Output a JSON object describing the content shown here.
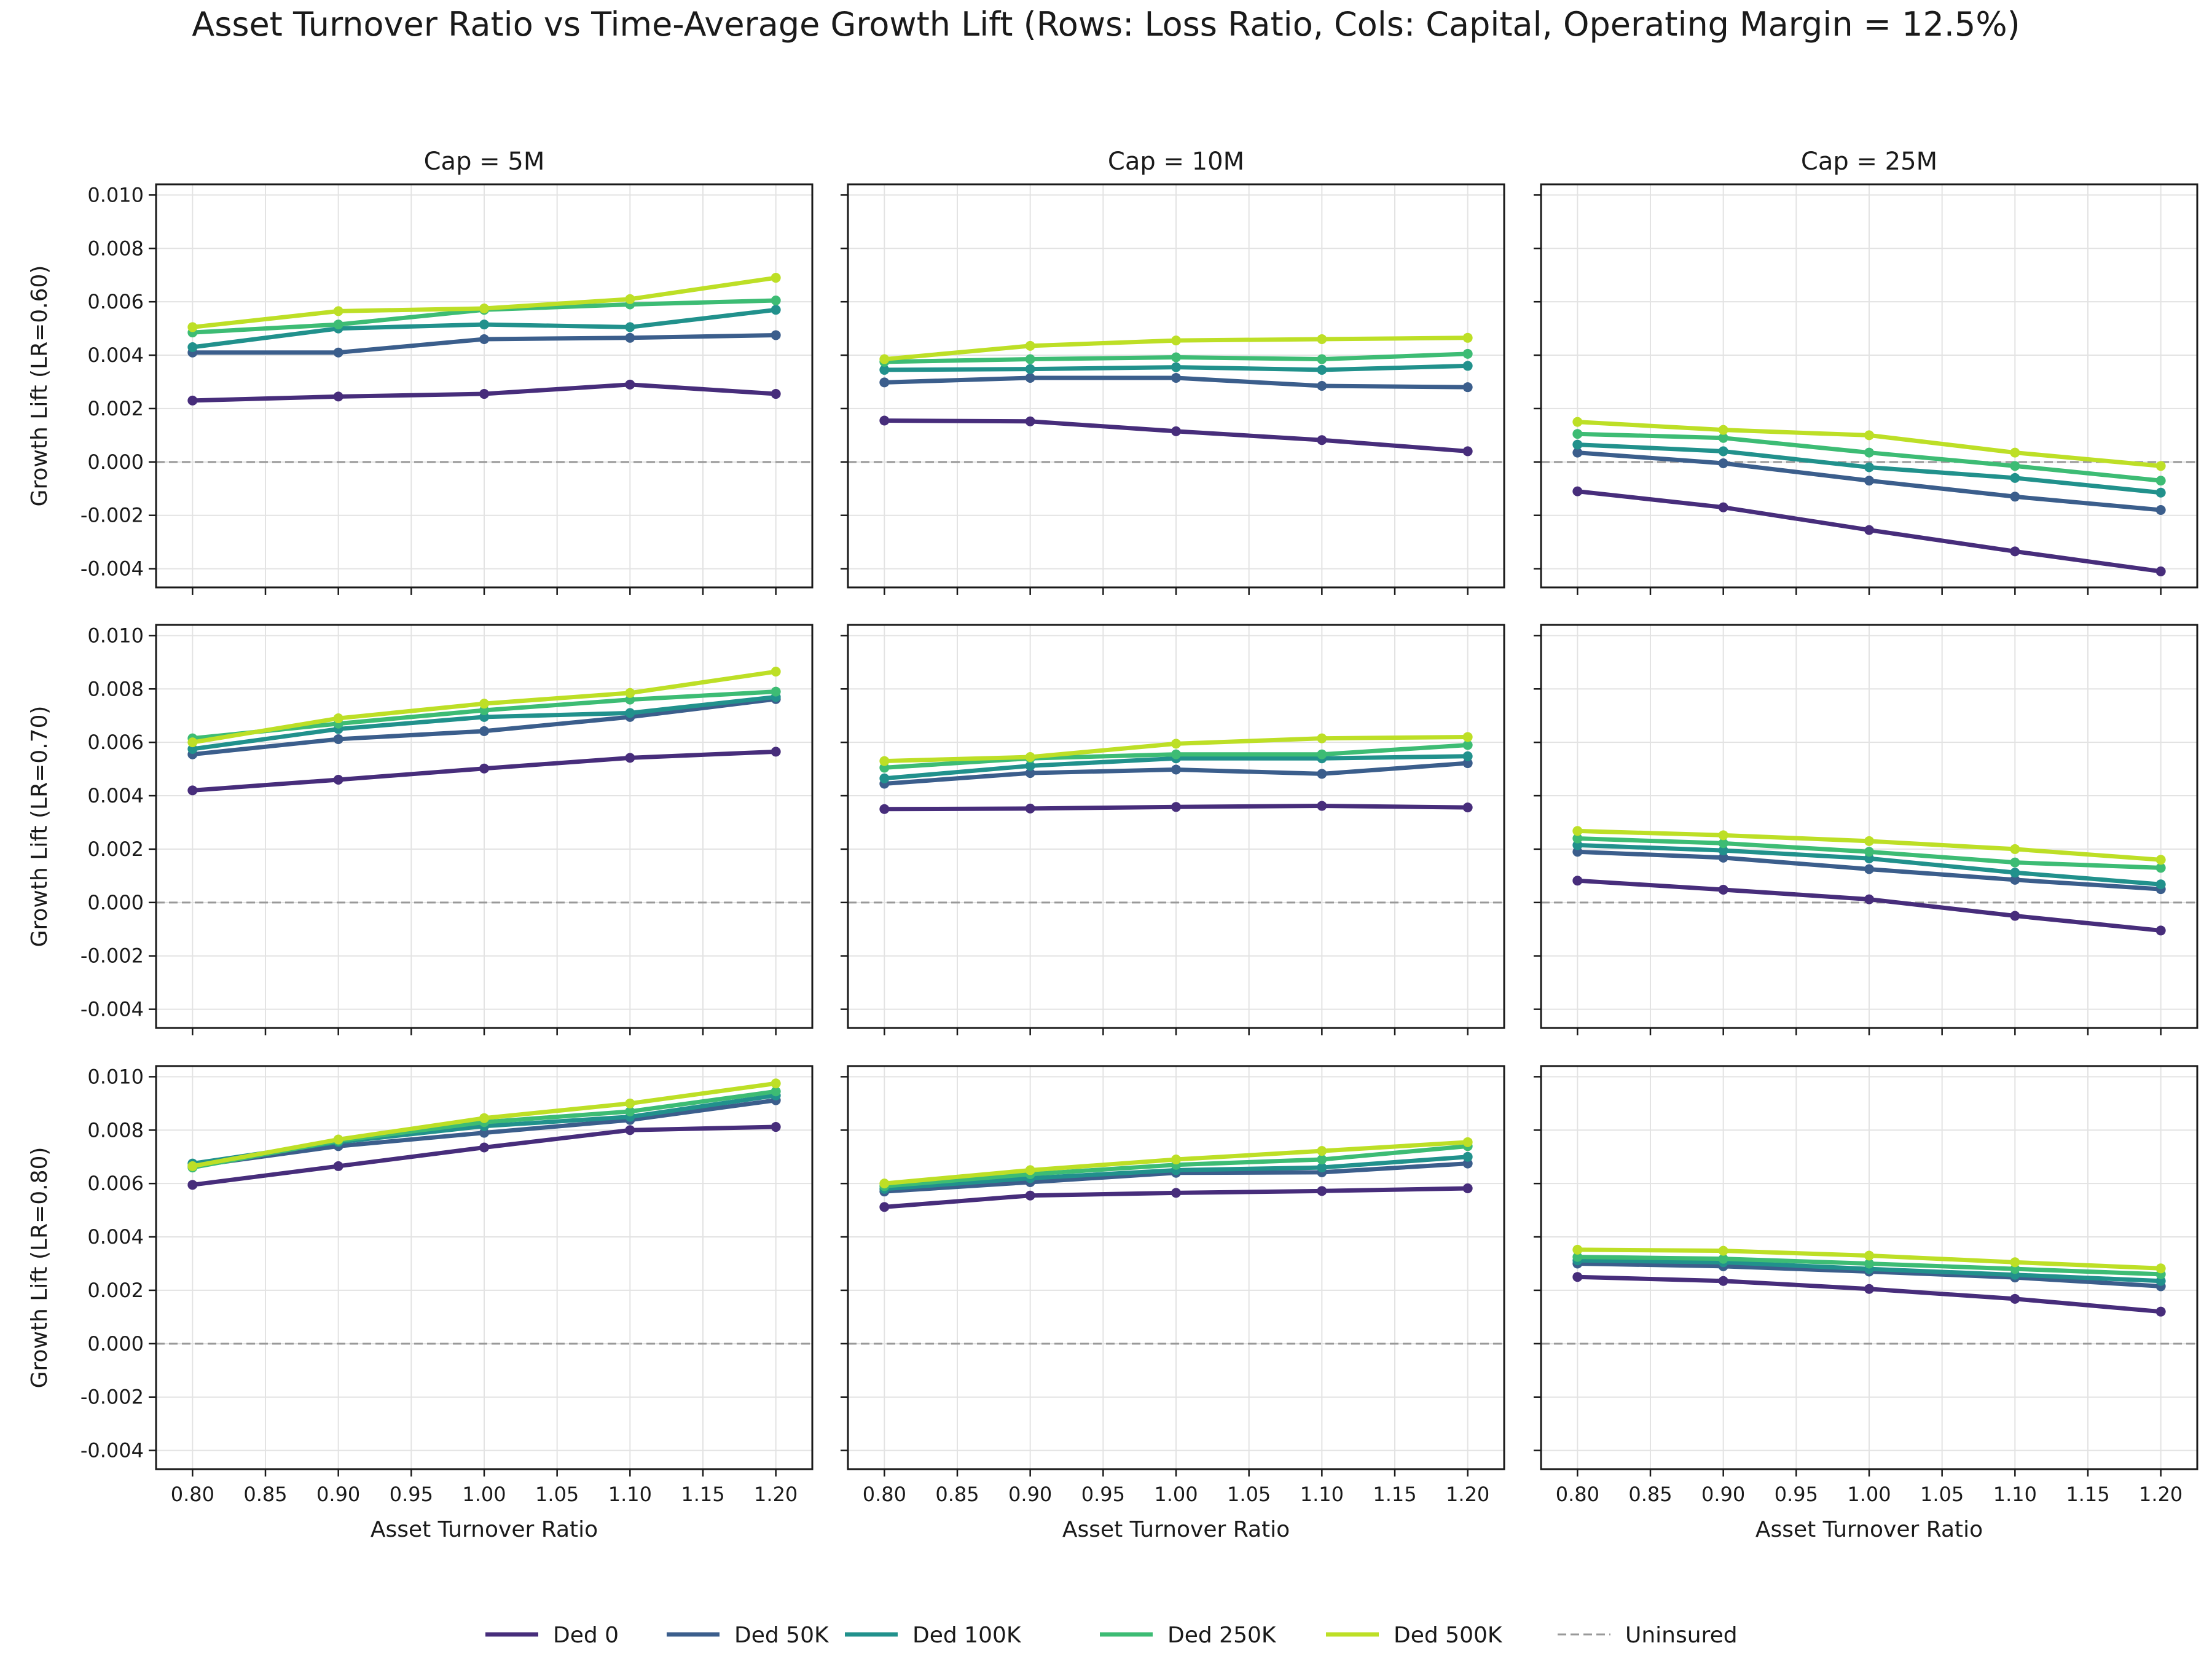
{
  "title": "Asset Turnover Ratio vs Time-Average Growth Lift (Rows: Loss Ratio, Cols: Capital, Operating Margin = 12.5%)",
  "chart_data": {
    "type": "line",
    "xlabel": "Asset Turnover Ratio",
    "x": [
      0.8,
      0.9,
      1.0,
      1.1,
      1.2
    ],
    "xlim": [
      0.775,
      1.225
    ],
    "ylim": [
      -0.0047,
      0.0104
    ],
    "xticks": [
      "0.80",
      "0.85",
      "0.90",
      "0.95",
      "1.00",
      "1.05",
      "1.10",
      "1.15",
      "1.20"
    ],
    "yticks": [
      "0.010",
      "0.008",
      "0.006",
      "0.004",
      "0.002",
      "0.000",
      "-0.002",
      "-0.004"
    ],
    "grid": true,
    "legend_position": "bottom-center",
    "columns": [
      "Cap = 5M",
      "Cap = 10M",
      "Cap = 25M"
    ],
    "rows": [
      "Growth Lift (LR=0.60)",
      "Growth Lift (LR=0.70)",
      "Growth Lift (LR=0.80)"
    ],
    "series_names": [
      "Ded 0",
      "Ded 50K",
      "Ded 100K",
      "Ded 250K",
      "Ded 500K"
    ],
    "series_colors": [
      "#472d7b",
      "#3b5e8c",
      "#21918c",
      "#3dbc74",
      "#bddf26"
    ],
    "reference_line": {
      "name": "Uninsured",
      "y": 0.0,
      "color": "#999999"
    },
    "panels": [
      [
        [
          [
            0.0023,
            0.00245,
            0.00255,
            0.0029,
            0.00255
          ],
          [
            0.0041,
            0.0041,
            0.0046,
            0.00465,
            0.00475
          ],
          [
            0.0043,
            0.005,
            0.00515,
            0.00505,
            0.0057
          ],
          [
            0.00485,
            0.00515,
            0.0057,
            0.0059,
            0.00605
          ],
          [
            0.00505,
            0.00565,
            0.00575,
            0.0061,
            0.0069
          ]
        ],
        [
          [
            0.00155,
            0.00152,
            0.00115,
            0.00082,
            0.0004
          ],
          [
            0.00298,
            0.00315,
            0.00315,
            0.00285,
            0.0028
          ],
          [
            0.00345,
            0.00348,
            0.00355,
            0.00345,
            0.0036
          ],
          [
            0.00375,
            0.00385,
            0.00392,
            0.00385,
            0.00405
          ],
          [
            0.00385,
            0.00435,
            0.00455,
            0.0046,
            0.00465
          ]
        ],
        [
          [
            -0.0011,
            -0.0017,
            -0.00255,
            -0.00335,
            -0.0041
          ],
          [
            0.00035,
            -5e-05,
            -0.0007,
            -0.0013,
            -0.0018
          ],
          [
            0.00065,
            0.0004,
            -0.0002,
            -0.0006,
            -0.00115
          ],
          [
            0.00105,
            0.0009,
            0.00035,
            -0.00015,
            -0.0007
          ],
          [
            0.0015,
            0.0012,
            0.001,
            0.00035,
            -0.00015
          ]
        ]
      ],
      [
        [
          [
            0.0042,
            0.0046,
            0.00502,
            0.00542,
            0.00565
          ],
          [
            0.00555,
            0.00612,
            0.00642,
            0.00695,
            0.00762
          ],
          [
            0.00575,
            0.0065,
            0.00695,
            0.0071,
            0.0077
          ],
          [
            0.00615,
            0.0067,
            0.0072,
            0.0076,
            0.0079
          ],
          [
            0.006,
            0.0069,
            0.00745,
            0.00785,
            0.00865
          ]
        ],
        [
          [
            0.0035,
            0.00352,
            0.00358,
            0.00362,
            0.00356
          ],
          [
            0.00445,
            0.00485,
            0.00498,
            0.00482,
            0.00522
          ],
          [
            0.00465,
            0.00512,
            0.0054,
            0.0054,
            0.00548
          ],
          [
            0.00505,
            0.0054,
            0.00555,
            0.00555,
            0.0059
          ],
          [
            0.0053,
            0.00545,
            0.00595,
            0.00615,
            0.0062
          ]
        ],
        [
          [
            0.00082,
            0.00048,
            0.00012,
            -0.0005,
            -0.00105
          ],
          [
            0.0019,
            0.00168,
            0.00125,
            0.00085,
            0.0005
          ],
          [
            0.00215,
            0.00195,
            0.00165,
            0.00112,
            0.00068
          ],
          [
            0.0024,
            0.00222,
            0.0019,
            0.0015,
            0.0013
          ],
          [
            0.00268,
            0.00252,
            0.0023,
            0.002,
            0.0016
          ]
        ]
      ],
      [
        [
          [
            0.00595,
            0.00665,
            0.00735,
            0.008,
            0.00812
          ],
          [
            0.00665,
            0.0074,
            0.0079,
            0.00838,
            0.00912
          ],
          [
            0.00675,
            0.00755,
            0.00815,
            0.0085,
            0.0093
          ],
          [
            0.0066,
            0.0076,
            0.0083,
            0.0087,
            0.00945
          ],
          [
            0.00665,
            0.00765,
            0.00845,
            0.009,
            0.00975
          ]
        ],
        [
          [
            0.00512,
            0.00555,
            0.00565,
            0.00572,
            0.00582
          ],
          [
            0.0057,
            0.00605,
            0.0064,
            0.00642,
            0.00675
          ],
          [
            0.0058,
            0.0062,
            0.0065,
            0.0066,
            0.007
          ],
          [
            0.0059,
            0.00635,
            0.0067,
            0.0069,
            0.0074
          ],
          [
            0.006,
            0.0065,
            0.0069,
            0.00722,
            0.00755
          ]
        ],
        [
          [
            0.0025,
            0.00235,
            0.00205,
            0.00168,
            0.0012
          ],
          [
            0.003,
            0.0029,
            0.0027,
            0.00248,
            0.00215
          ],
          [
            0.00312,
            0.00305,
            0.0028,
            0.00258,
            0.00235
          ],
          [
            0.00325,
            0.00318,
            0.003,
            0.0028,
            0.0026
          ],
          [
            0.00352,
            0.00348,
            0.0033,
            0.00305,
            0.00282
          ]
        ]
      ]
    ]
  }
}
